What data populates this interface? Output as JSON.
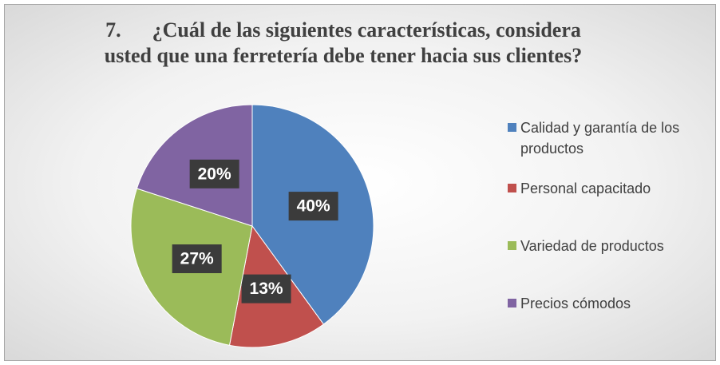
{
  "chart_data": {
    "type": "pie",
    "title": "7.      ¿Cuál de las siguientes características, considera usted que una ferretería debe tener hacia sus clientes?",
    "categories": [
      "Calidad y garantía de los productos",
      "Personal capacitado",
      "Variedad de productos",
      "Precios cómodos"
    ],
    "values": [
      40,
      13,
      27,
      20
    ],
    "value_labels": [
      "40%",
      "13%",
      "27%",
      "20%"
    ],
    "colors": [
      "#4f81bd",
      "#c0504d",
      "#9bbb59",
      "#8064a2"
    ],
    "legend": "right"
  }
}
